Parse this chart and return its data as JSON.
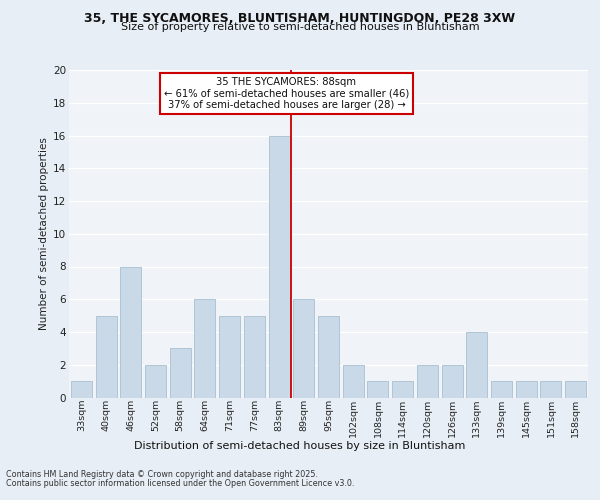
{
  "title_line1": "35, THE SYCAMORES, BLUNTISHAM, HUNTINGDON, PE28 3XW",
  "title_line2": "Size of property relative to semi-detached houses in Bluntisham",
  "xlabel": "Distribution of semi-detached houses by size in Bluntisham",
  "ylabel": "Number of semi-detached properties",
  "categories": [
    "33sqm",
    "40sqm",
    "46sqm",
    "52sqm",
    "58sqm",
    "64sqm",
    "71sqm",
    "77sqm",
    "83sqm",
    "89sqm",
    "95sqm",
    "102sqm",
    "108sqm",
    "114sqm",
    "120sqm",
    "126sqm",
    "133sqm",
    "139sqm",
    "145sqm",
    "151sqm",
    "158sqm"
  ],
  "values": [
    1,
    5,
    8,
    2,
    3,
    6,
    5,
    5,
    16,
    6,
    5,
    2,
    1,
    1,
    2,
    2,
    4,
    1,
    1,
    1,
    1
  ],
  "bar_color": "#c9d9e8",
  "bar_edge_color": "#a8bfd0",
  "vline_index": 8,
  "annotation_title": "35 THE SYCAMORES: 88sqm",
  "annotation_line1": "← 61% of semi-detached houses are smaller (46)",
  "annotation_line2": "37% of semi-detached houses are larger (28) →",
  "ylim": [
    0,
    20
  ],
  "yticks": [
    0,
    2,
    4,
    6,
    8,
    10,
    12,
    14,
    16,
    18,
    20
  ],
  "footer_line1": "Contains HM Land Registry data © Crown copyright and database right 2025.",
  "footer_line2": "Contains public sector information licensed under the Open Government Licence v3.0.",
  "bg_color": "#e8eef5",
  "plot_bg_color": "#f0f4f8",
  "grid_color": "#ffffff",
  "annotation_box_color": "#ffffff",
  "annotation_box_edge": "#cc0000",
  "vline_color": "#cc0000"
}
